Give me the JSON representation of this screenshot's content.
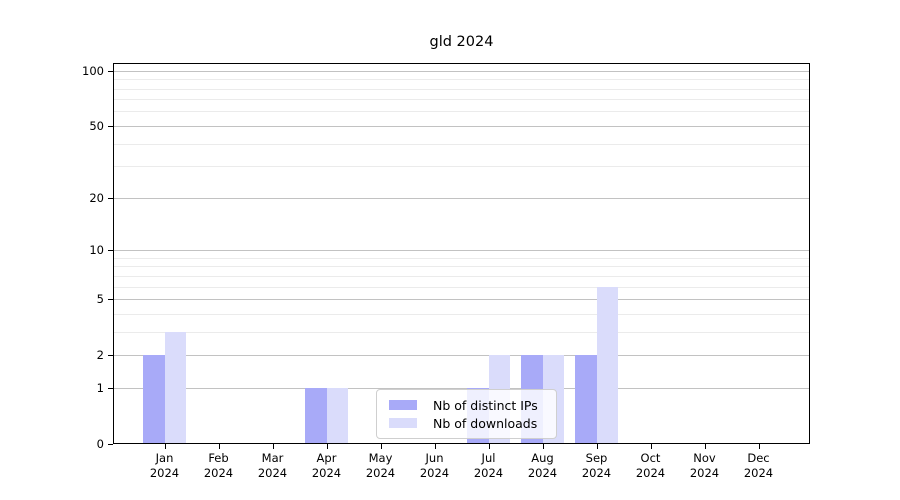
{
  "chart_data": {
    "type": "bar",
    "title": "gld 2024",
    "categories": [
      "Jan",
      "Feb",
      "Mar",
      "Apr",
      "May",
      "Jun",
      "Jul",
      "Aug",
      "Sep",
      "Oct",
      "Nov",
      "Dec"
    ],
    "x_year_label": "2024",
    "series": [
      {
        "name": "Nb of distinct IPs",
        "color": "#a8aaf8",
        "values": [
          2,
          0,
          0,
          1,
          0,
          0,
          1,
          2,
          2,
          0,
          0,
          0
        ]
      },
      {
        "name": "Nb of downloads",
        "color": "#dadcfb",
        "values": [
          3,
          0,
          0,
          1,
          0,
          0,
          2,
          2,
          6,
          0,
          0,
          0
        ]
      }
    ],
    "y_axis": {
      "scale": "log1p",
      "major_ticks": [
        0,
        1,
        2,
        5,
        10,
        20,
        50,
        100
      ],
      "minor_gridlines": [
        3,
        4,
        6,
        7,
        8,
        9,
        30,
        40,
        60,
        70,
        80,
        90
      ],
      "ylim": [
        0,
        110
      ]
    },
    "xlabel": "",
    "ylabel": "",
    "grid": true,
    "legend_position": "lower-center-inside",
    "colors": {
      "major_grid": "#c2c2c2",
      "minor_grid": "#ebebeb",
      "axis": "#000000",
      "background": "#ffffff"
    }
  }
}
